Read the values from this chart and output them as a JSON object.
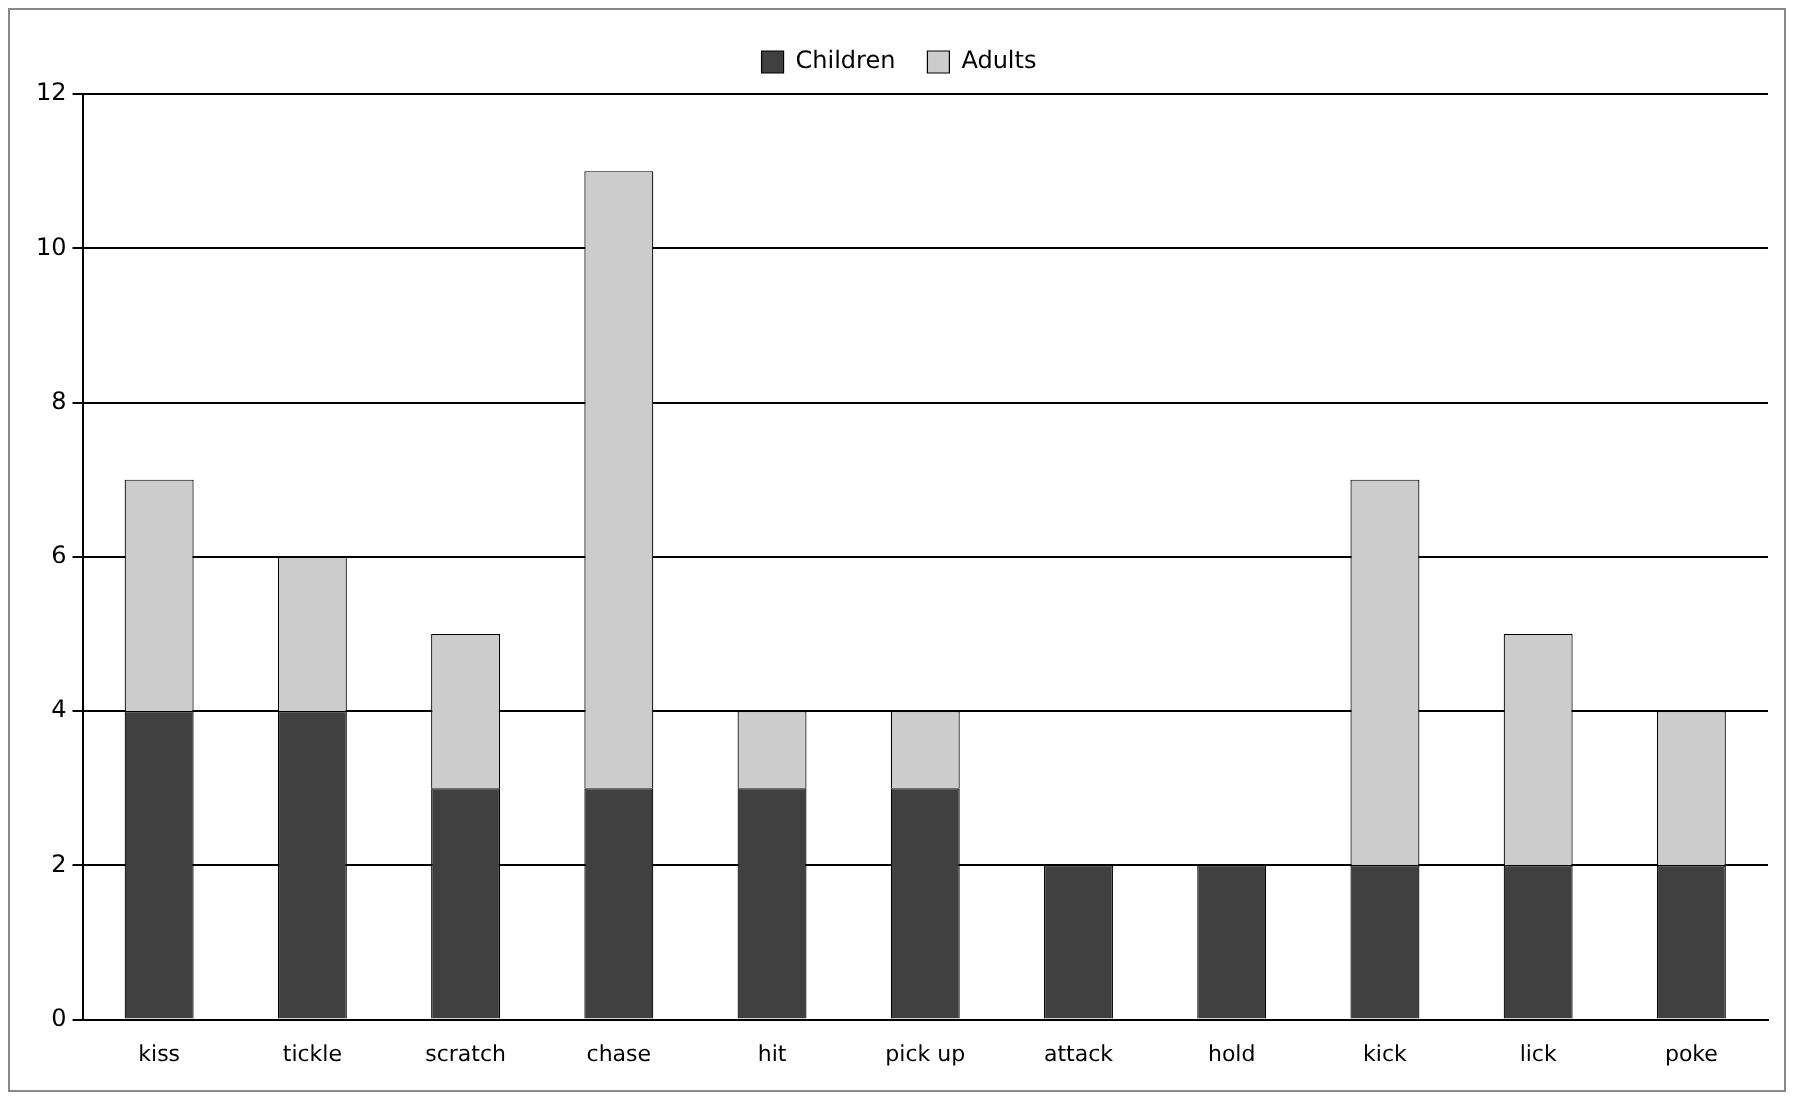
{
  "chart_data": {
    "type": "bar",
    "stacked": true,
    "categories": [
      "kiss",
      "tickle",
      "scratch",
      "chase",
      "hit",
      "pick up",
      "attack",
      "hold",
      "kick",
      "lick",
      "poke"
    ],
    "series": [
      {
        "name": "Children",
        "color": "#404040",
        "values": [
          4,
          4,
          3,
          3,
          3,
          3,
          2,
          2,
          2,
          2,
          2
        ]
      },
      {
        "name": "Adults",
        "color": "#cccccc",
        "values": [
          3,
          2,
          2,
          8,
          1,
          1,
          0,
          0,
          5,
          3,
          2
        ]
      }
    ],
    "ylim": [
      0,
      12
    ],
    "yticks": [
      0,
      2,
      4,
      6,
      8,
      10,
      12
    ],
    "grid": "y",
    "legend": "top"
  }
}
